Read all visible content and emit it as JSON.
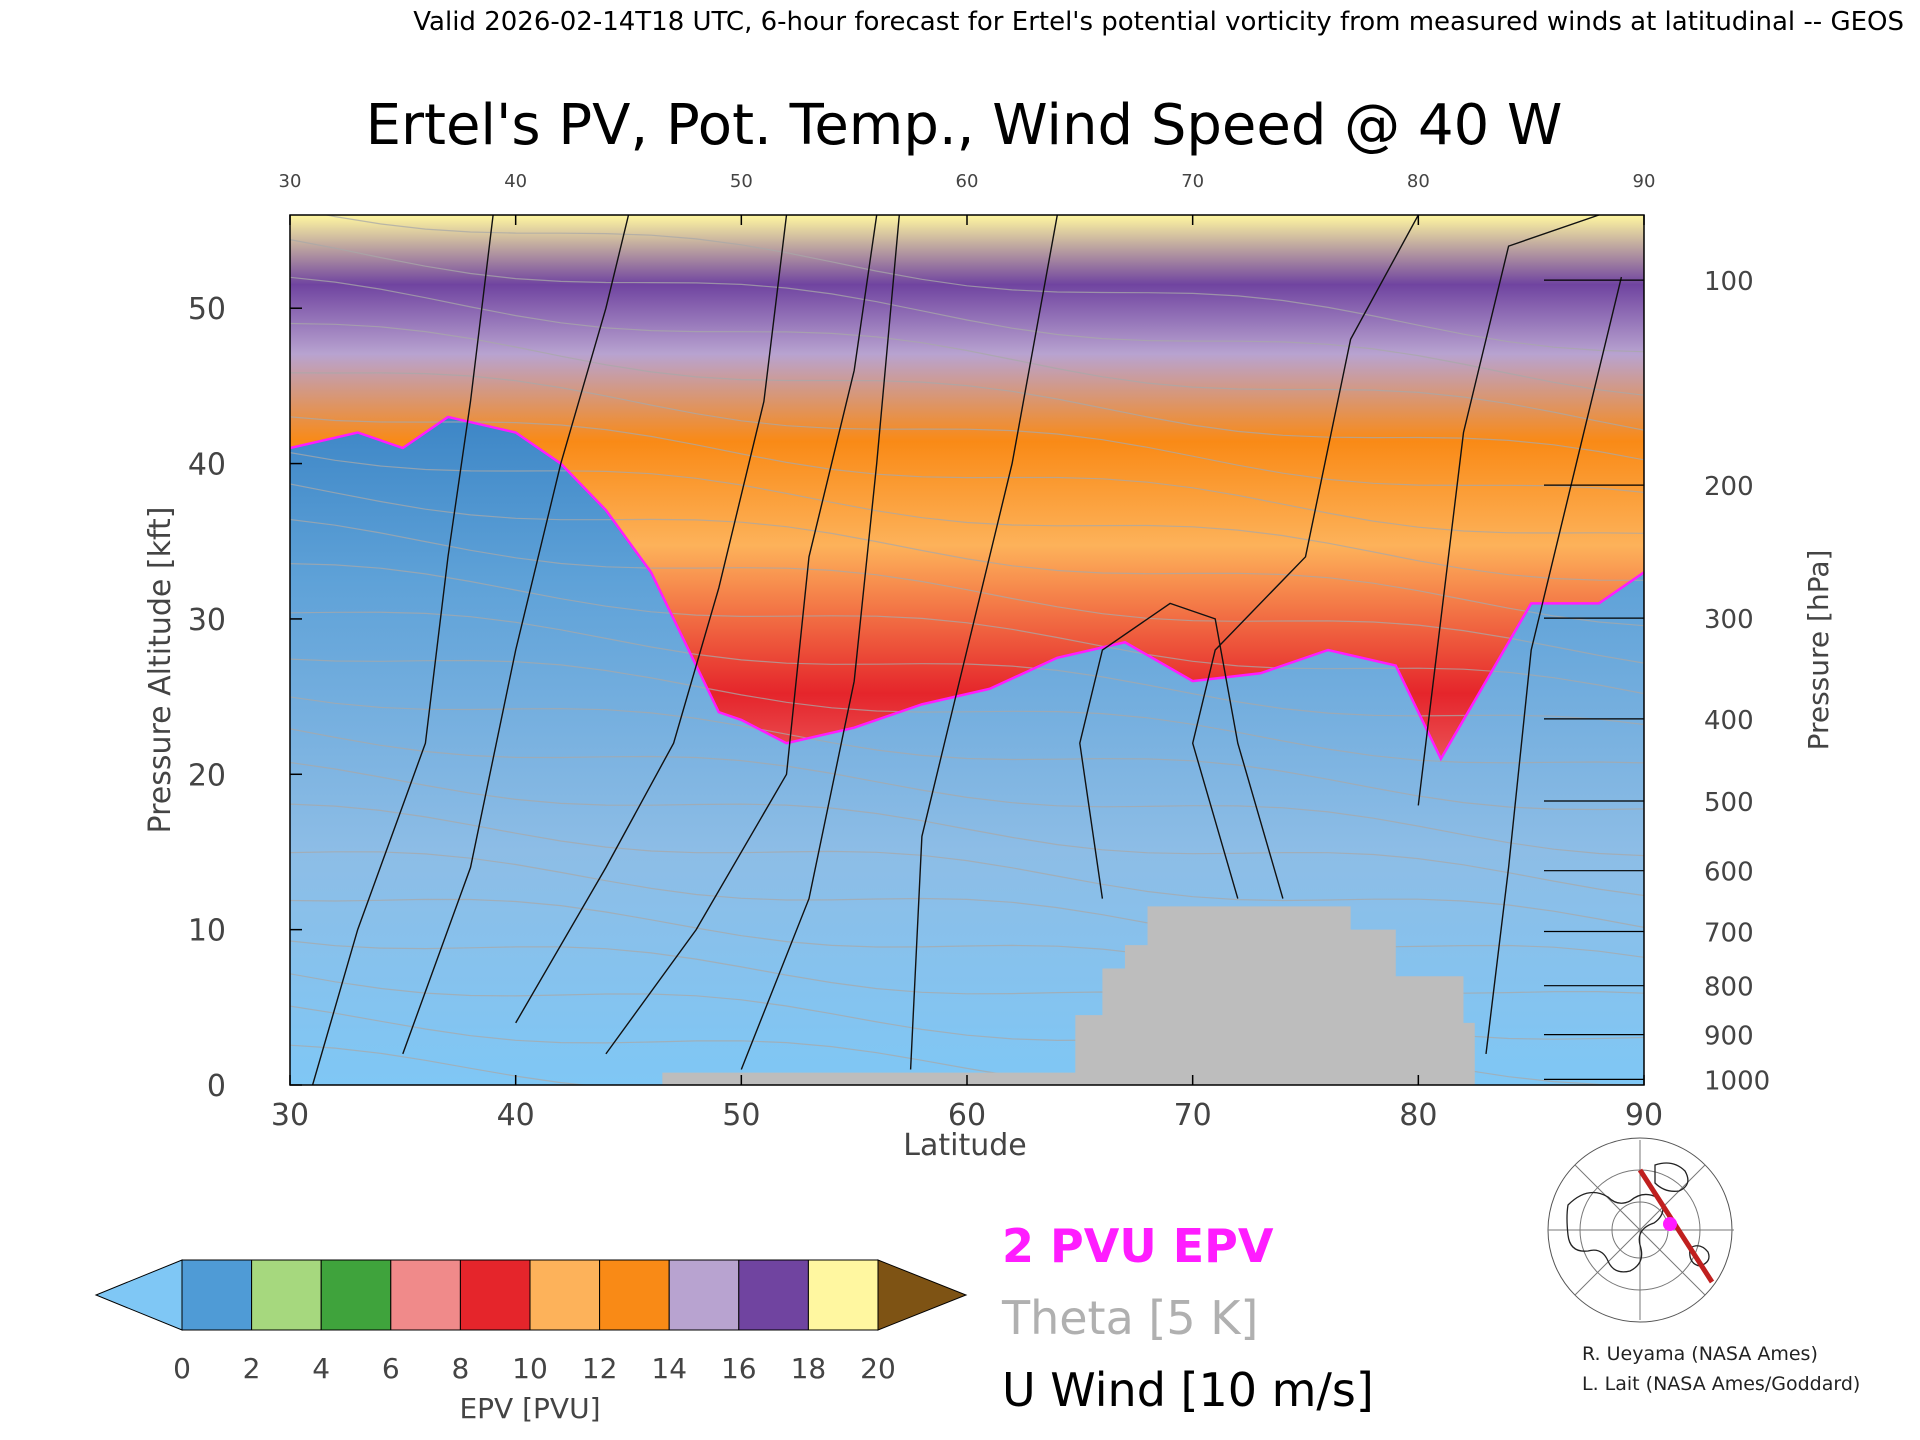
{
  "header": "Valid 2026-02-14T18 UTC, 6-hour forecast for Ertel's potential vorticity from measured winds at latitudinal -- GEOS",
  "chart_data": {
    "type": "heatmap",
    "title": "Ertel's PV, Pot. Temp., Wind Speed @ 40 W",
    "xlabel": "Latitude",
    "ylabel": "Pressure Altitude [kft]",
    "y2label": "Pressure [hPa]",
    "xlim": [
      30,
      90
    ],
    "ylim": [
      0,
      56
    ],
    "x_ticks": [
      "30",
      "40",
      "50",
      "60",
      "70",
      "80",
      "90"
    ],
    "top_ticks": [
      "30",
      "40",
      "50",
      "60",
      "70",
      "80",
      "90"
    ],
    "y_ticks": [
      "0",
      "10",
      "20",
      "30",
      "40",
      "50"
    ],
    "pressure_ticks": [
      {
        "label": "1000",
        "hpa": 1000
      },
      {
        "label": "900",
        "hpa": 900
      },
      {
        "label": "800",
        "hpa": 800
      },
      {
        "label": "700",
        "hpa": 700
      },
      {
        "label": "600",
        "hpa": 600
      },
      {
        "label": "500",
        "hpa": 500
      },
      {
        "label": "400",
        "hpa": 400
      },
      {
        "label": "300",
        "hpa": 300
      },
      {
        "label": "200",
        "hpa": 200
      },
      {
        "label": "100",
        "hpa": 100
      }
    ],
    "tropopause_2pvu_kft": [
      [
        30,
        41
      ],
      [
        33,
        42
      ],
      [
        35,
        41
      ],
      [
        37,
        43
      ],
      [
        40,
        42
      ],
      [
        42,
        40
      ],
      [
        44,
        37
      ],
      [
        46,
        33
      ],
      [
        48,
        27
      ],
      [
        49,
        24
      ],
      [
        50,
        23.5
      ],
      [
        52,
        22
      ],
      [
        55,
        23
      ],
      [
        58,
        24.5
      ],
      [
        61,
        25.5
      ],
      [
        64,
        27.5
      ],
      [
        67,
        28.5
      ],
      [
        70,
        26
      ],
      [
        73,
        26.5
      ],
      [
        76,
        28
      ],
      [
        79,
        27
      ],
      [
        81,
        21
      ],
      [
        83,
        26
      ],
      [
        85,
        31
      ],
      [
        88,
        31
      ],
      [
        90,
        33
      ]
    ],
    "terrain_kft": [
      [
        46.5,
        0.8
      ],
      [
        64.8,
        0.8
      ],
      [
        64.8,
        4.5
      ],
      [
        66,
        4.5
      ],
      [
        66,
        7.5
      ],
      [
        67,
        7.5
      ],
      [
        67,
        9
      ],
      [
        68,
        9
      ],
      [
        68,
        11.5
      ],
      [
        77,
        11.5
      ],
      [
        77,
        10
      ],
      [
        79,
        10
      ],
      [
        79,
        7
      ],
      [
        82,
        7
      ],
      [
        82,
        4
      ],
      [
        82.5,
        4
      ],
      [
        82.5,
        0
      ]
    ],
    "colorbar": {
      "label": "EPV [PVU]",
      "ticks": [
        "0",
        "2",
        "4",
        "6",
        "8",
        "10",
        "12",
        "14",
        "16",
        "18",
        "20"
      ],
      "colors": [
        "#4f9bd6",
        "#a6d87e",
        "#3fa33c",
        "#f08a8a",
        "#e5252b",
        "#fdb25a",
        "#f98a16",
        "#b8a3d0",
        "#7044a0",
        "#fff7a0"
      ],
      "under_color": "#7fc7f5",
      "over_color": "#7e5314"
    },
    "legend": [
      {
        "label": "2 PVU EPV",
        "color": "#ff1cff"
      },
      {
        "label": "Theta [5 K]",
        "color": "#b0b0b0"
      },
      {
        "label": "U Wind [10 m/s]",
        "color": "#000000"
      }
    ]
  },
  "credits": [
    "R. Ueyama (NASA Ames)",
    "L. Lait (NASA Ames/Goddard)"
  ]
}
